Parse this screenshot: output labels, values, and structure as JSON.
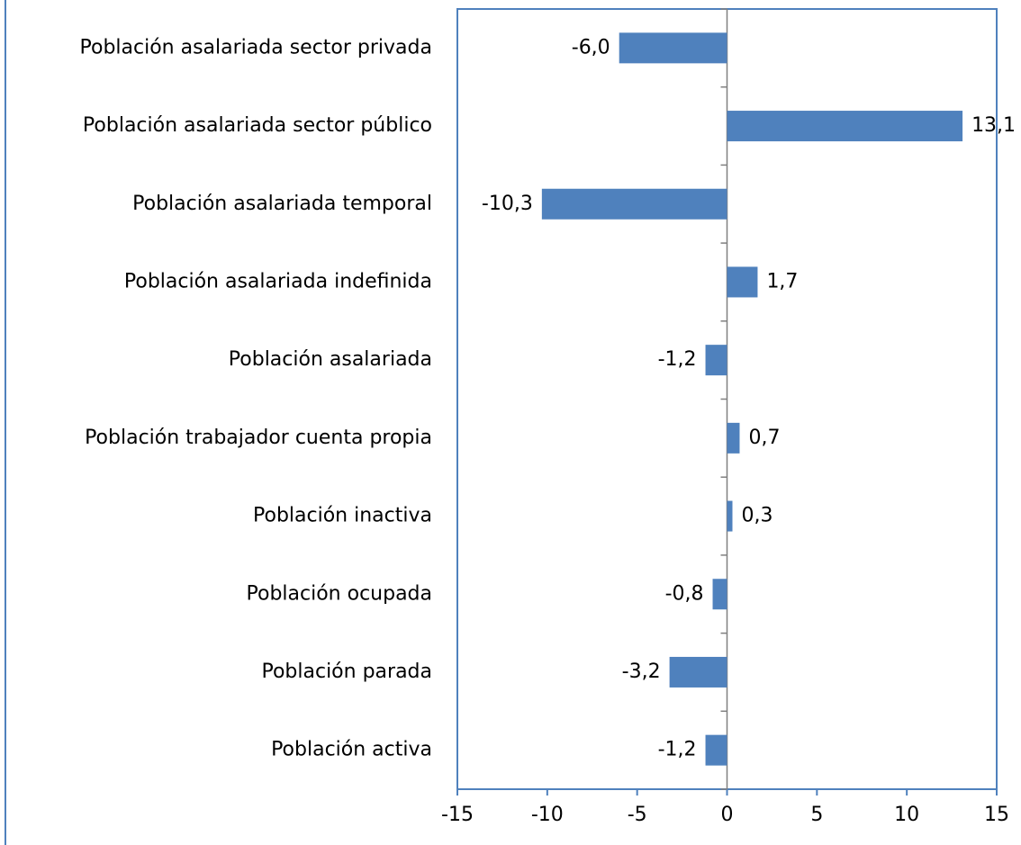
{
  "chart_data": {
    "type": "barh",
    "categories": [
      "Población activa",
      "Población parada",
      "Población ocupada",
      "Población inactiva",
      "Población trabajador cuenta propia",
      "Población asalariada",
      "Población asalariada indefinida",
      "Población asalariada temporal",
      "Población asalariada sector público",
      "Población asalariada sector privada"
    ],
    "values": [
      -1.2,
      -3.2,
      -0.8,
      0.3,
      0.7,
      -1.2,
      1.7,
      -10.3,
      13.1,
      -6.0
    ],
    "value_labels": [
      "-1,2",
      "-3,2",
      "-0,8",
      "0,3",
      "0,7",
      "-1,2",
      "1,7",
      "-10,3",
      "13,1",
      "-6,0"
    ],
    "color": "#4f81bd",
    "xlim": [
      -15,
      15
    ],
    "xticks": [
      -15,
      -10,
      -5,
      0,
      5,
      10,
      15
    ]
  }
}
